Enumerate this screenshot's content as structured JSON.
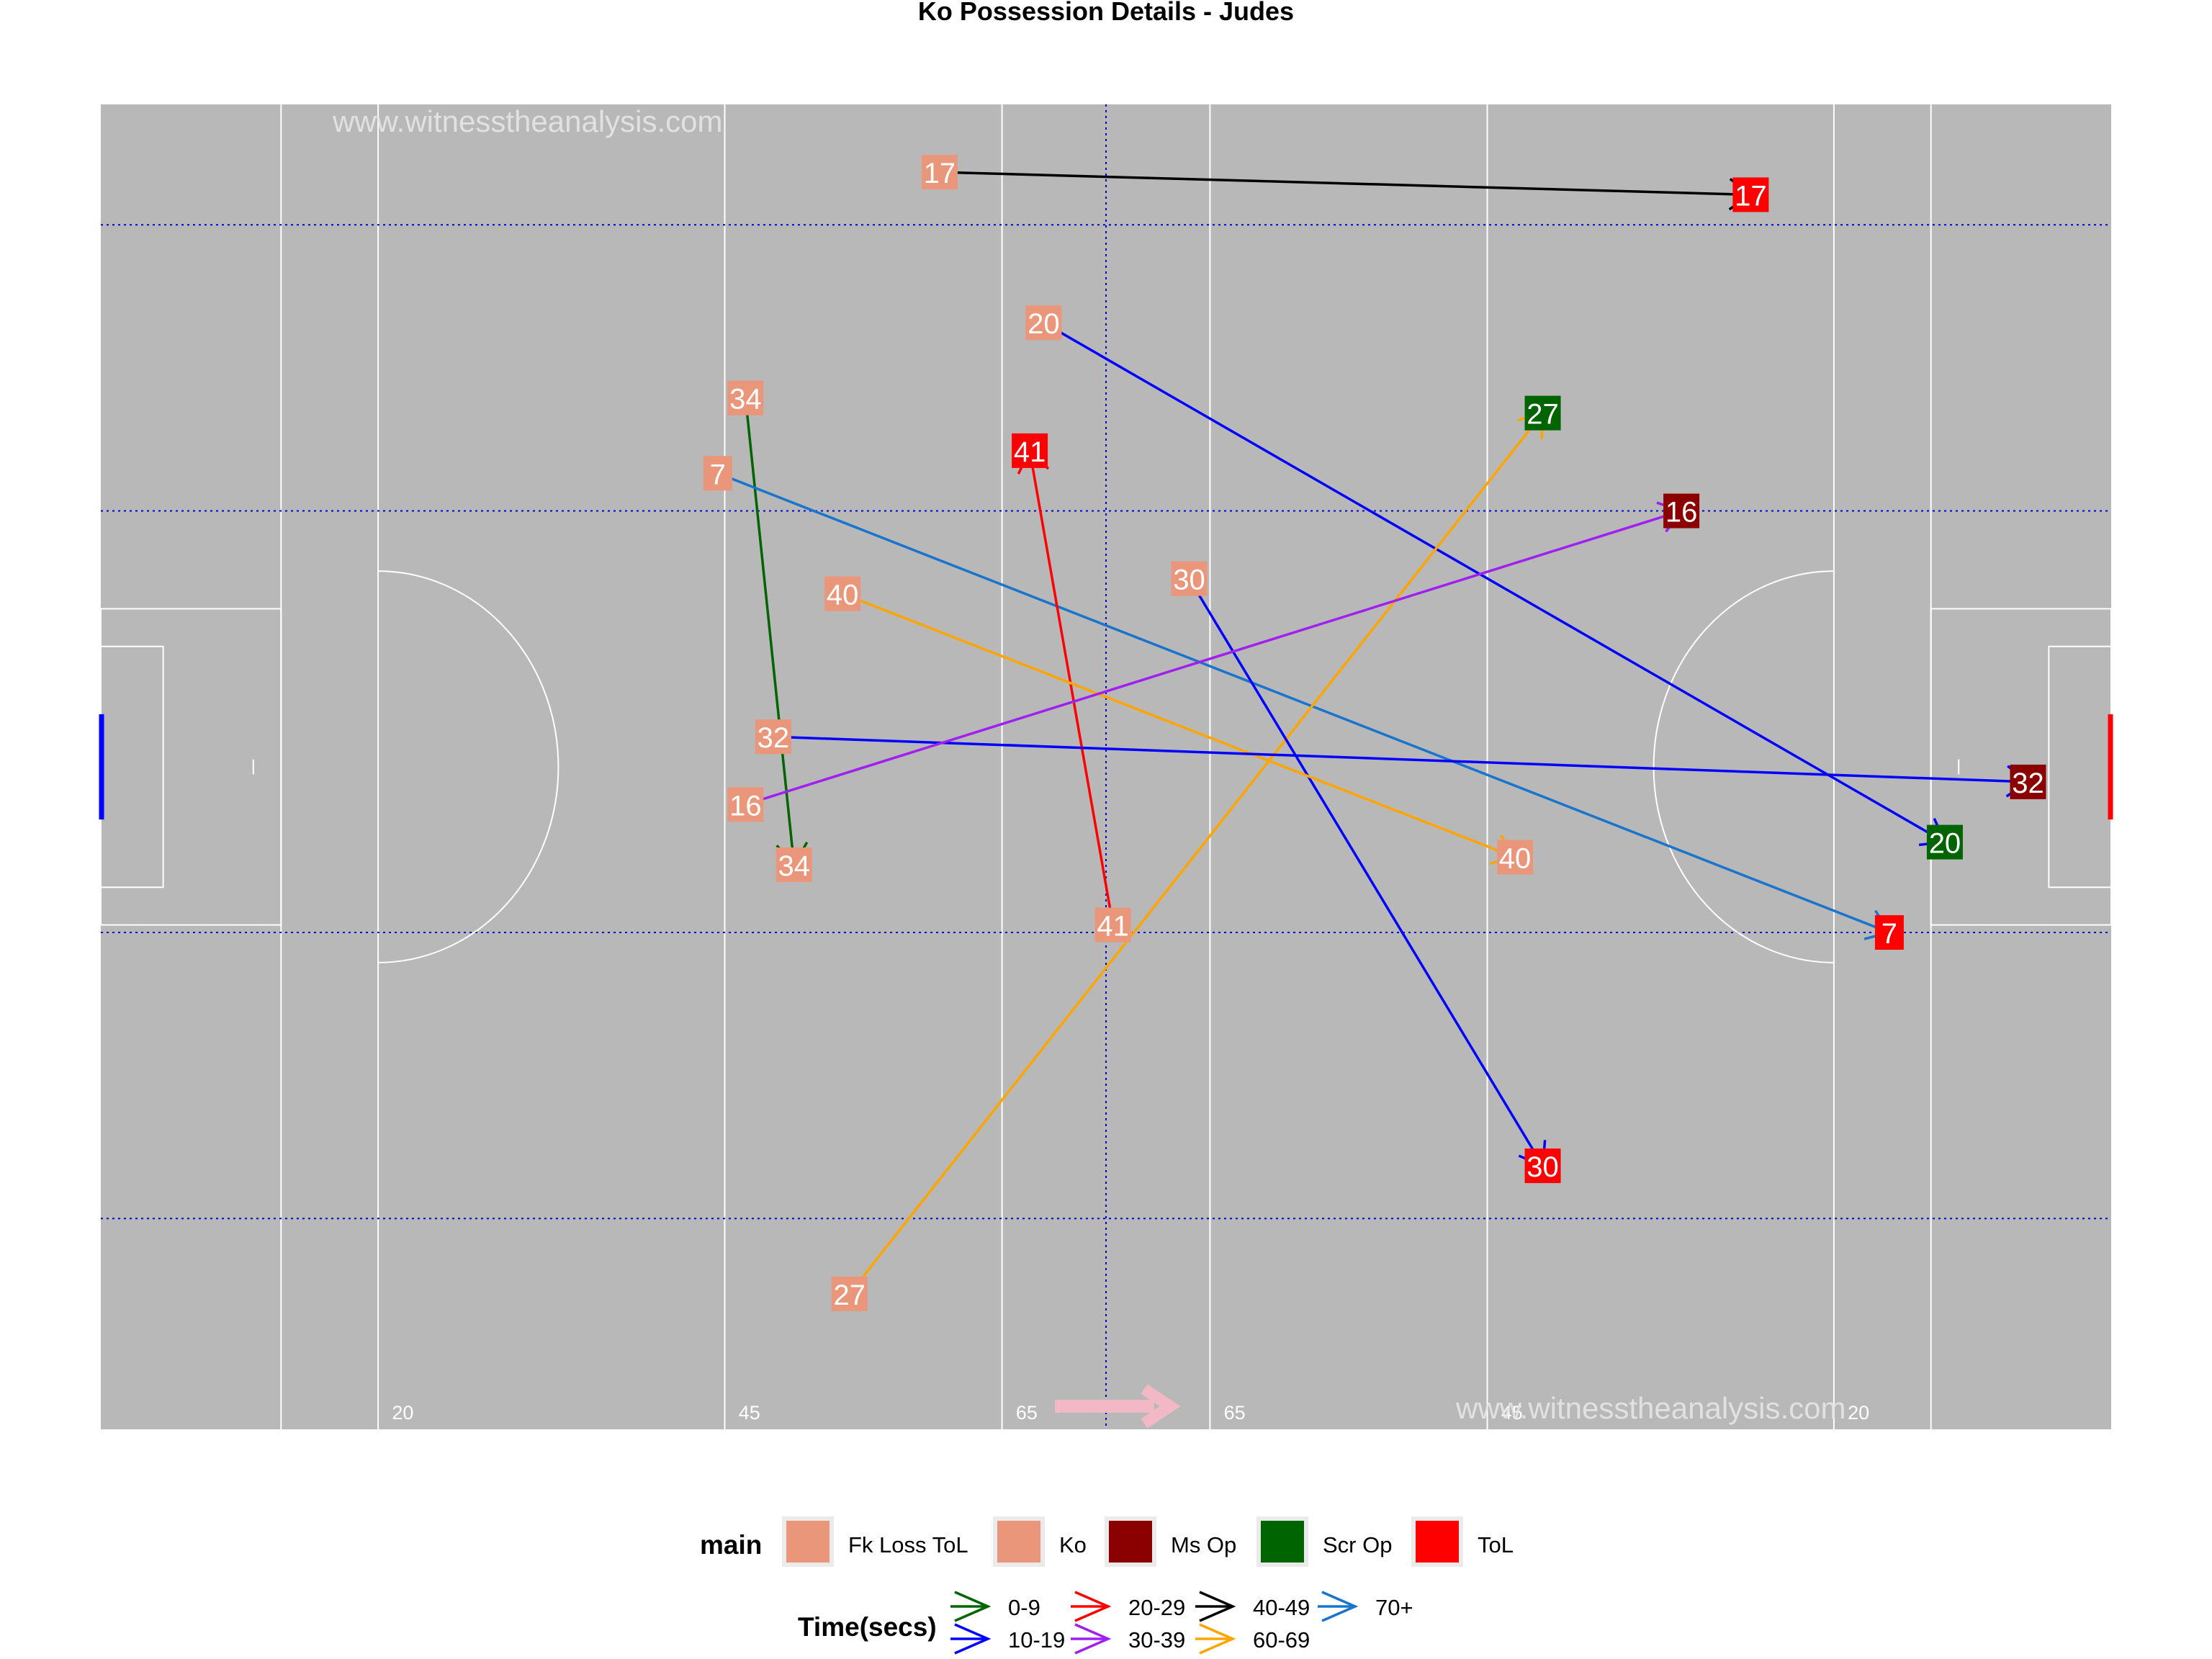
{
  "chart_data": {
    "type": "scatter",
    "title": "Ko Possession Details - Judes",
    "watermark": "www.witnesstheanalysis.com",
    "pitch": {
      "xlim": [
        0,
        145
      ],
      "ylim": [
        0,
        88
      ],
      "colors": {
        "grass": "#b8b8b8",
        "lines": "#ffffff",
        "guides": "#0000cc",
        "left_goal": "#0000ff",
        "right_goal": "#ff0000",
        "direction_arrow": "#f2b8c6"
      },
      "distance_labels": [
        {
          "x": 21,
          "text": "20"
        },
        {
          "x": 46,
          "text": "45"
        },
        {
          "x": 66,
          "text": "65"
        },
        {
          "x": 81,
          "text": "65"
        },
        {
          "x": 101,
          "text": "45"
        },
        {
          "x": 126,
          "text": "20"
        }
      ]
    },
    "category_colors": {
      "Fk Loss ToL": "#e9967a",
      "Ko": "#e9967a",
      "Ms Op": "#8b0000",
      "Scr Op": "#006400",
      "ToL": "#ff0000"
    },
    "time_colors": {
      "0-9": "#006400",
      "10-19": "#0000ff",
      "20-29": "#ff0000",
      "30-39": "#a020f0",
      "40-49": "#000000",
      "60-69": "#ffa500",
      "70+": "#1874cd"
    },
    "possessions": [
      {
        "label": "17",
        "start": [
          60.5,
          83.5
        ],
        "end": [
          119,
          82
        ],
        "time": "40-49",
        "end_type": "ToL"
      },
      {
        "label": "20",
        "start": [
          68,
          73.5
        ],
        "end": [
          133,
          39
        ],
        "time": "10-19",
        "end_type": "Scr Op"
      },
      {
        "label": "34",
        "start": [
          46.5,
          68.5
        ],
        "end": [
          50,
          37.5
        ],
        "time": "0-9",
        "end_type": "Ko"
      },
      {
        "label": "7",
        "start": [
          44.5,
          63.5
        ],
        "end": [
          129,
          33
        ],
        "time": "70+",
        "end_type": "ToL"
      },
      {
        "label": "41",
        "start": [
          73,
          33.5
        ],
        "end": [
          67,
          65
        ],
        "time": "20-29",
        "end_type": "ToL"
      },
      {
        "label": "27",
        "start": [
          54,
          9
        ],
        "end": [
          104,
          67.5
        ],
        "time": "60-69",
        "end_type": "Scr Op"
      },
      {
        "label": "30",
        "start": [
          78.5,
          56.5
        ],
        "end": [
          104,
          17.5
        ],
        "time": "10-19",
        "end_type": "ToL"
      },
      {
        "label": "40",
        "start": [
          53.5,
          55.5
        ],
        "end": [
          102,
          38
        ],
        "time": "60-69",
        "end_type": "Ko"
      },
      {
        "label": "32",
        "start": [
          48.5,
          46
        ],
        "end": [
          139,
          43
        ],
        "time": "10-19",
        "end_type": "Ms Op"
      },
      {
        "label": "16",
        "start": [
          46.5,
          41.5
        ],
        "end": [
          114,
          61
        ],
        "time": "30-39",
        "end_type": "Ms Op"
      }
    ],
    "legend": {
      "position": "bottom",
      "main_title": "main",
      "main_items": [
        "Fk Loss ToL",
        "Ko",
        "Ms Op",
        "Scr Op",
        "ToL"
      ],
      "time_title": "Time(secs)",
      "time_items": [
        "0-9",
        "10-19",
        "20-29",
        "30-39",
        "40-49",
        "60-69",
        "70+"
      ]
    }
  }
}
